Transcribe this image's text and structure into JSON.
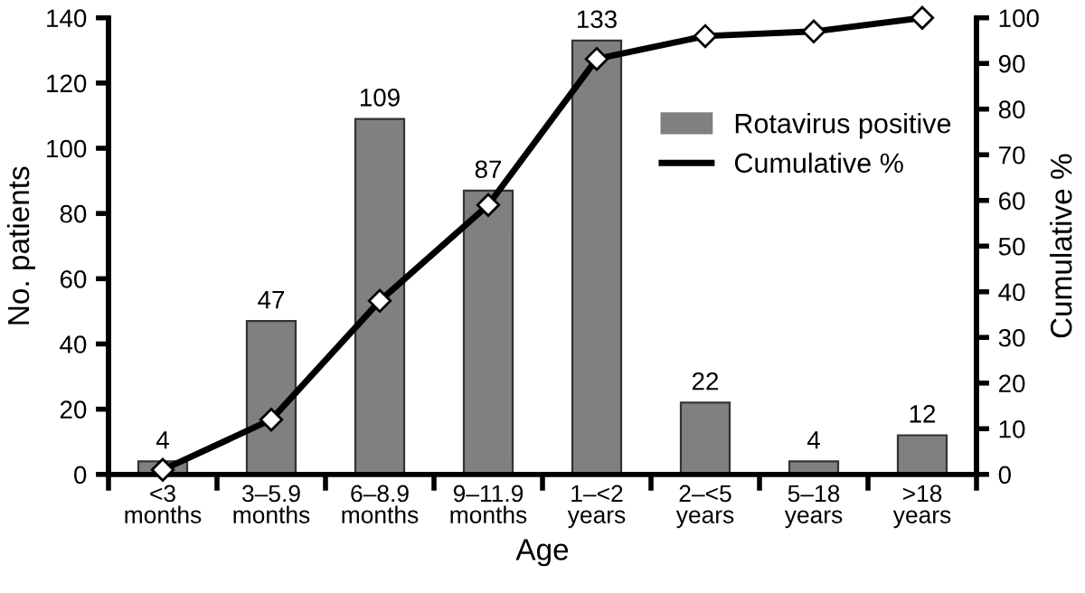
{
  "chart_data": {
    "type": "bar",
    "xlabel": "Age",
    "ylabel": "No. patients",
    "y2label": "Cumulative %",
    "categories": [
      "<3\nmonths",
      "3–5.9\nmonths",
      "6–8.9\nmonths",
      "9–11.9\nmonths",
      "1–<2\nyears",
      "2–<5\nyears",
      "5–18\nyears",
      ">18\nyears"
    ],
    "series": [
      {
        "name": "Rotavirus positive",
        "color": "#808080",
        "values": [
          4,
          47,
          109,
          87,
          133,
          22,
          4,
          12
        ],
        "value_labels": [
          "4",
          "47",
          "109",
          "87",
          "133",
          "22",
          "4",
          "12"
        ]
      },
      {
        "name": "Cumulative %",
        "type": "line",
        "axis": "y2",
        "color": "#000000",
        "marker": "diamond",
        "values": [
          1,
          12,
          38,
          59,
          91,
          96,
          97,
          100
        ]
      }
    ],
    "ylim": [
      0,
      140
    ],
    "yticks": [
      0,
      20,
      40,
      60,
      80,
      100,
      120,
      140
    ],
    "y2lim": [
      0,
      100
    ],
    "y2ticks": [
      0,
      10,
      20,
      30,
      40,
      50,
      60,
      70,
      80,
      90,
      100
    ],
    "grid": false,
    "legend": "right"
  }
}
